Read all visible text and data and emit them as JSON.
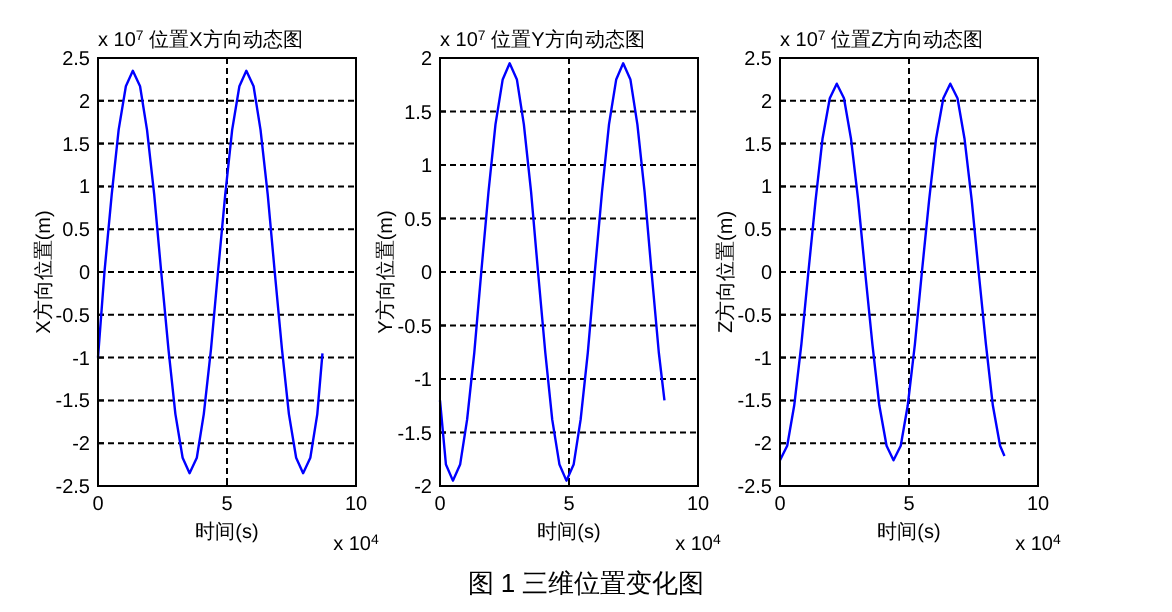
{
  "chart_data": [
    {
      "type": "line",
      "title": "位置X方向动态图",
      "xlabel": "时间(s)",
      "ylabel": "X方向位置(m)",
      "annotations": [
        "x 10$^{7}$",
        "x 10$^{4}$"
      ],
      "xlim": [
        0,
        10
      ],
      "xticks": [
        0,
        5,
        10
      ],
      "ylim": [
        -2.5,
        2.5
      ],
      "yticks": [
        -2.5,
        -2,
        -1.5,
        -1,
        -0.5,
        0,
        0.5,
        1,
        1.5,
        2,
        2.5
      ],
      "grid": true,
      "line_style": "solid",
      "marker": "none",
      "series": [
        {
          "color": "#0000ff",
          "x": [
            0,
            0.25,
            0.53,
            0.8,
            1.08,
            1.35,
            1.63,
            1.9,
            2.18,
            2.45,
            2.73,
            3.0,
            3.28,
            3.55,
            3.83,
            4.1,
            4.38,
            4.65,
            4.93,
            5.2,
            5.48,
            5.75,
            6.03,
            6.3,
            6.58,
            6.85,
            7.13,
            7.4,
            7.68,
            7.95,
            8.23,
            8.5,
            8.7
          ],
          "values": [
            -1,
            0,
            0.9,
            1.66,
            2.17,
            2.35,
            2.17,
            1.66,
            0.9,
            0,
            -0.9,
            -1.66,
            -2.17,
            -2.35,
            -2.17,
            -1.66,
            -0.9,
            0,
            0.9,
            1.66,
            2.17,
            2.35,
            2.17,
            1.66,
            0.9,
            0,
            -0.9,
            -1.66,
            -2.17,
            -2.35,
            -2.17,
            -1.66,
            -0.95
          ]
        }
      ]
    },
    {
      "type": "line",
      "title": "位置Y方向动态图",
      "xlabel": "时间(s)",
      "ylabel": "Y方向位置(m)",
      "annotations": [
        "x 10$^{7}$",
        "x 10$^{4}$"
      ],
      "xlim": [
        0,
        10
      ],
      "xticks": [
        0,
        5,
        10
      ],
      "ylim": [
        -2,
        2
      ],
      "yticks": [
        -2,
        -1.5,
        -1,
        -0.5,
        0,
        0.5,
        1,
        1.5,
        2
      ],
      "grid": true,
      "line_style": "solid",
      "marker": "none",
      "series": [
        {
          "color": "#0000ff",
          "x": [
            0,
            0.23,
            0.5,
            0.78,
            1.05,
            1.33,
            1.6,
            1.88,
            2.15,
            2.43,
            2.7,
            2.98,
            3.25,
            3.53,
            3.8,
            4.08,
            4.35,
            4.63,
            4.9,
            5.18,
            5.45,
            5.73,
            6.0,
            6.28,
            6.55,
            6.83,
            7.1,
            7.38,
            7.65,
            7.93,
            8.2,
            8.48,
            8.7
          ],
          "values": [
            -1.2,
            -1.8,
            -1.95,
            -1.8,
            -1.38,
            -0.75,
            0,
            0.75,
            1.38,
            1.8,
            1.95,
            1.8,
            1.38,
            0.75,
            0,
            -0.75,
            -1.38,
            -1.8,
            -1.95,
            -1.8,
            -1.38,
            -0.75,
            0,
            0.75,
            1.38,
            1.8,
            1.95,
            1.8,
            1.38,
            0.75,
            0,
            -0.75,
            -1.2
          ]
        }
      ]
    },
    {
      "type": "line",
      "title": "位置Z方向动态图",
      "xlabel": "时间(s)",
      "ylabel": "Z方向位置(m)",
      "annotations": [
        "x 10$^{7}$",
        "x 10$^{4}$",
        "图 1  三维位置变化图"
      ],
      "xlim": [
        0,
        10
      ],
      "xticks": [
        0,
        5,
        10
      ],
      "ylim": [
        -2.5,
        2.5
      ],
      "yticks": [
        -2.5,
        -2,
        -1.5,
        -1,
        -0.5,
        0,
        0.5,
        1,
        1.5,
        2,
        2.5
      ],
      "grid": true,
      "line_style": "solid",
      "marker": "none",
      "series": [
        {
          "color": "#0000ff",
          "x": [
            0,
            0.28,
            0.55,
            0.83,
            1.1,
            1.38,
            1.65,
            1.93,
            2.2,
            2.48,
            2.75,
            3.03,
            3.3,
            3.58,
            3.85,
            4.13,
            4.4,
            4.68,
            4.95,
            5.23,
            5.5,
            5.78,
            6.05,
            6.33,
            6.6,
            6.88,
            7.15,
            7.43,
            7.7,
            7.98,
            8.25,
            8.53,
            8.7
          ],
          "values": [
            -2.2,
            -2.03,
            -1.56,
            -0.84,
            0,
            0.84,
            1.56,
            2.03,
            2.2,
            2.03,
            1.56,
            0.84,
            0,
            -0.84,
            -1.56,
            -2.03,
            -2.2,
            -2.03,
            -1.56,
            -0.84,
            0,
            0.84,
            1.56,
            2.03,
            2.2,
            2.03,
            1.56,
            0.84,
            0,
            -0.84,
            -1.56,
            -2.03,
            -2.15
          ]
        }
      ]
    }
  ]
}
